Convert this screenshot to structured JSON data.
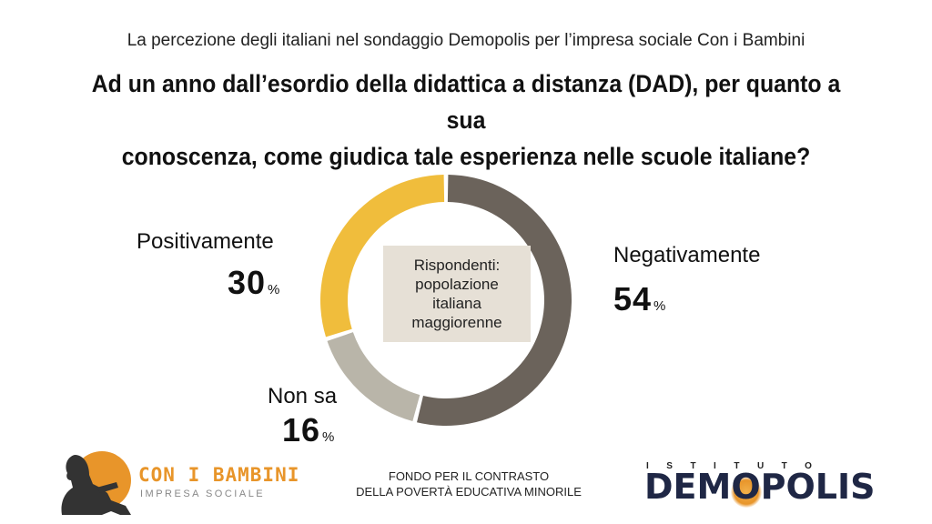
{
  "header": {
    "subtitle": "La percezione degli italiani nel sondaggio Demopolis per l’impresa sociale Con i Bambini",
    "question_line1": "Ad un anno dall’esordio della didattica a distanza (DAD), per quanto a sua",
    "question_line2": "conoscenza, come giudica tale esperienza nelle scuole italiane?"
  },
  "chart_data": {
    "type": "pie",
    "donut": true,
    "slices": [
      {
        "label": "Negativamente",
        "value": 54,
        "display": "54",
        "color": "#6b635b"
      },
      {
        "label": "Non sa",
        "value": 16,
        "display": "16",
        "color": "#b9b5a9"
      },
      {
        "label": "Positivamente",
        "value": 30,
        "display": "30",
        "color": "#f0bd3c"
      }
    ],
    "unit": "%",
    "center_text": [
      "Rispondenti:",
      "popolazione",
      "italiana",
      "maggiorenne"
    ]
  },
  "footer": {
    "left_logo_title": "CON I BAMBINI",
    "left_logo_sub": "IMPRESA SOCIALE",
    "center_line1": "FONDO PER IL CONTRASTO",
    "center_line2": "DELLA POVERTÀ EDUCATIVA MINORILE",
    "right_logo_top": "ISTITUTO",
    "right_logo_name": "DEMOPOLIS"
  }
}
